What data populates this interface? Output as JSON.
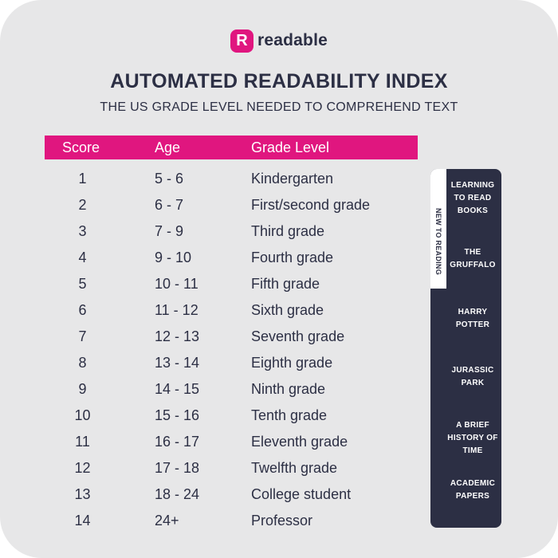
{
  "logo": {
    "mark": "R",
    "name": "readable"
  },
  "title": "AUTOMATED READABILITY INDEX",
  "subtitle": "THE US GRADE LEVEL NEEDED TO COMPREHEND TEXT",
  "table": {
    "headers": {
      "score": "Score",
      "age": "Age",
      "grade": "Grade Level"
    },
    "rows": [
      {
        "score": "1",
        "age": "5 - 6",
        "grade": "Kindergarten"
      },
      {
        "score": "2",
        "age": "6 - 7",
        "grade": "First/second grade"
      },
      {
        "score": "3",
        "age": "7 - 9",
        "grade": "Third grade"
      },
      {
        "score": "4",
        "age": "9 - 10",
        "grade": "Fourth grade"
      },
      {
        "score": "5",
        "age": "10 - 11",
        "grade": "Fifth grade"
      },
      {
        "score": "6",
        "age": "11 - 12",
        "grade": "Sixth grade"
      },
      {
        "score": "7",
        "age": "12 - 13",
        "grade": "Seventh grade"
      },
      {
        "score": "8",
        "age": "13 - 14",
        "grade": "Eighth grade"
      },
      {
        "score": "9",
        "age": "14 - 15",
        "grade": "Ninth grade"
      },
      {
        "score": "10",
        "age": "15 - 16",
        "grade": "Tenth grade"
      },
      {
        "score": "11",
        "age": "16 - 17",
        "grade": "Eleventh grade"
      },
      {
        "score": "12",
        "age": "17 - 18",
        "grade": "Twelfth grade"
      },
      {
        "score": "13",
        "age": "18 - 24",
        "grade": "College student"
      },
      {
        "score": "14",
        "age": "24+",
        "grade": "Professor"
      }
    ]
  },
  "sidebar": {
    "vertical_label": "NEW TO READING",
    "books": [
      {
        "line1": "LEARNING",
        "line2": "TO READ",
        "line3": "BOOKS"
      },
      {
        "line1": "THE",
        "line2": "GRUFFALO",
        "line3": ""
      },
      {
        "line1": "HARRY",
        "line2": "POTTER",
        "line3": ""
      },
      {
        "line1": "JURASSIC",
        "line2": "PARK",
        "line3": ""
      },
      {
        "line1": "A BRIEF",
        "line2": "HISTORY OF",
        "line3": "TIME"
      },
      {
        "line1": "ACADEMIC",
        "line2": "PAPERS",
        "line3": ""
      }
    ]
  },
  "colors": {
    "accent": "#e0167f",
    "dark": "#2c2f44",
    "background": "#e7e7e8"
  }
}
